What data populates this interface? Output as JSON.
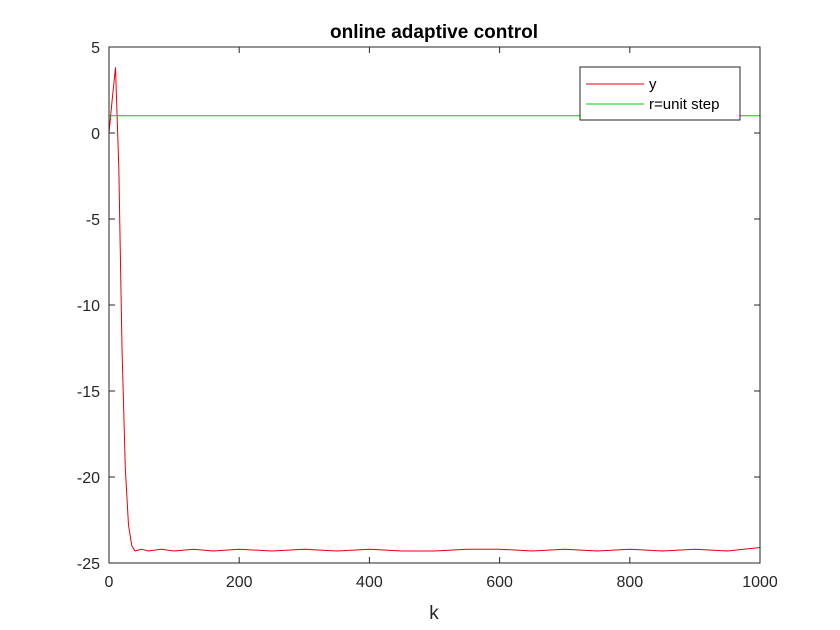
{
  "chart_data": {
    "type": "line",
    "title": "online adaptive control",
    "xlabel": "k",
    "ylabel": "",
    "xlim": [
      0,
      1000
    ],
    "ylim": [
      -25,
      5
    ],
    "xticks": [
      0,
      200,
      400,
      600,
      800,
      1000
    ],
    "yticks": [
      5,
      0,
      -5,
      -10,
      -15,
      -20,
      -25
    ],
    "grid": false,
    "legend_position": "top-right",
    "series": [
      {
        "name": "y",
        "color": "#e8000b",
        "points": [
          [
            0,
            0
          ],
          [
            5,
            2.0
          ],
          [
            10,
            3.8
          ],
          [
            15,
            -2.0
          ],
          [
            20,
            -12.5
          ],
          [
            25,
            -19.5
          ],
          [
            30,
            -22.8
          ],
          [
            35,
            -24.0
          ],
          [
            40,
            -24.3
          ],
          [
            50,
            -24.2
          ],
          [
            60,
            -24.3
          ],
          [
            80,
            -24.2
          ],
          [
            100,
            -24.3
          ],
          [
            130,
            -24.2
          ],
          [
            160,
            -24.3
          ],
          [
            200,
            -24.2
          ],
          [
            250,
            -24.3
          ],
          [
            300,
            -24.2
          ],
          [
            350,
            -24.3
          ],
          [
            400,
            -24.2
          ],
          [
            450,
            -24.3
          ],
          [
            500,
            -24.3
          ],
          [
            550,
            -24.2
          ],
          [
            600,
            -24.2
          ],
          [
            650,
            -24.3
          ],
          [
            700,
            -24.2
          ],
          [
            750,
            -24.3
          ],
          [
            800,
            -24.2
          ],
          [
            850,
            -24.3
          ],
          [
            900,
            -24.2
          ],
          [
            950,
            -24.3
          ],
          [
            1000,
            -24.1
          ]
        ]
      },
      {
        "name": "r=unit step",
        "color": "#00cc00",
        "points": [
          [
            0,
            1
          ],
          [
            1000,
            1
          ]
        ]
      }
    ]
  }
}
